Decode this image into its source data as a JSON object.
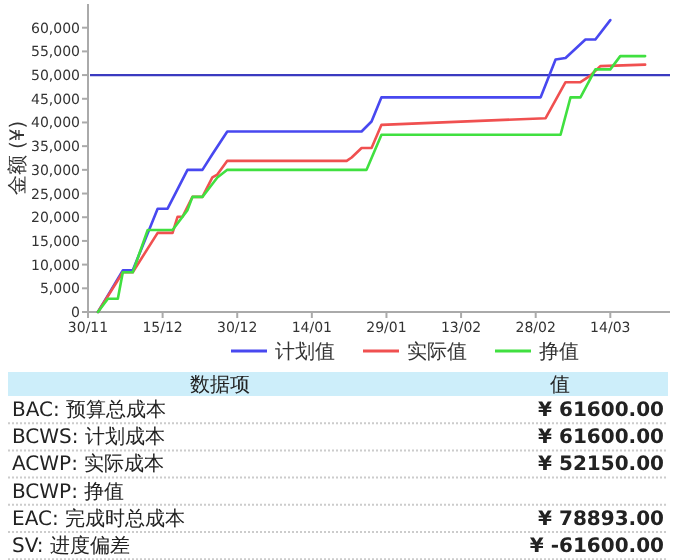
{
  "chart_data": [
    {
      "type": "line",
      "ylabel": "金额 (¥)",
      "xlim": [
        "2011-11-30",
        "2012-03-26"
      ],
      "ylim": [
        0,
        65000
      ],
      "xticks": [
        {
          "value": "2011-11-30",
          "label": "30/11"
        },
        {
          "value": "2011-12-15",
          "label": "15/12"
        },
        {
          "value": "2011-12-30",
          "label": "30/12"
        },
        {
          "value": "2012-01-14",
          "label": "14/01"
        },
        {
          "value": "2012-01-29",
          "label": "29/01"
        },
        {
          "value": "2012-02-13",
          "label": "13/02"
        },
        {
          "value": "2012-02-28",
          "label": "28/02"
        },
        {
          "value": "2012-03-14",
          "label": "14/03"
        }
      ],
      "yticks": [
        0,
        {
          "value": 5000,
          "label": "5,000"
        },
        {
          "value": 10000,
          "label": "10,000"
        },
        {
          "value": 15000,
          "label": "15,000"
        },
        {
          "value": 20000,
          "label": "20,000"
        },
        {
          "value": 25000,
          "label": "25,000"
        },
        {
          "value": 30000,
          "label": "30,000"
        },
        {
          "value": 35000,
          "label": "35,000"
        },
        {
          "value": 40000,
          "label": "40,000"
        },
        {
          "value": 45000,
          "label": "45,000"
        },
        {
          "value": 50000,
          "label": "50,000"
        },
        {
          "value": 55000,
          "label": "55,000"
        },
        {
          "value": 60000,
          "label": "60,000"
        }
      ],
      "ref_lines": [
        {
          "axis": "y",
          "value": 50000,
          "color": "#3a3ac0"
        }
      ],
      "legend": "bottom",
      "grid": false,
      "series": [
        {
          "name": "计划值",
          "color": "#4848f0",
          "x": [
            "2011-12-02",
            "2011-12-04",
            "2011-12-07",
            "2011-12-09",
            "2011-12-14",
            "2011-12-16",
            "2011-12-20",
            "2011-12-23",
            "2011-12-25",
            "2011-12-28",
            "2012-01-24",
            "2012-01-26",
            "2012-01-28",
            "2012-02-29",
            "2012-03-03",
            "2012-03-05",
            "2012-03-09",
            "2012-03-11",
            "2012-03-14"
          ],
          "values": [
            0,
            3500,
            8800,
            8800,
            21800,
            21800,
            30000,
            30000,
            33300,
            38100,
            38100,
            40200,
            45300,
            45300,
            53300,
            53600,
            57500,
            57500,
            61600
          ]
        },
        {
          "name": "实际值",
          "color": "#f05050",
          "x": [
            "2011-12-02",
            "2011-12-07",
            "2011-12-09",
            "2011-12-14",
            "2011-12-17",
            "2011-12-18",
            "2011-12-19",
            "2011-12-21",
            "2011-12-23",
            "2011-12-25",
            "2011-12-26",
            "2011-12-28",
            "2012-01-21",
            "2012-01-22",
            "2012-01-24",
            "2012-01-26",
            "2012-01-28",
            "2012-03-01",
            "2012-03-05",
            "2012-03-08",
            "2012-03-10",
            "2012-03-12",
            "2012-03-21"
          ],
          "values": [
            0,
            8400,
            8400,
            16700,
            16700,
            20100,
            20100,
            24300,
            24300,
            28400,
            29000,
            31900,
            31900,
            32600,
            34600,
            34600,
            39500,
            40900,
            48500,
            48500,
            49900,
            51900,
            52200
          ]
        },
        {
          "name": "挣值",
          "color": "#40e040",
          "x": [
            "2011-12-02",
            "2011-12-04",
            "2011-12-06",
            "2011-12-07",
            "2011-12-09",
            "2011-12-12",
            "2011-12-17",
            "2011-12-20",
            "2011-12-21",
            "2011-12-23",
            "2011-12-25",
            "2011-12-26",
            "2011-12-28",
            "2012-01-25",
            "2012-01-28",
            "2012-03-04",
            "2012-03-06",
            "2012-03-08",
            "2012-03-11",
            "2012-03-14",
            "2012-03-16",
            "2012-03-21"
          ],
          "values": [
            0,
            2800,
            2800,
            8400,
            8400,
            17300,
            17300,
            21500,
            24300,
            24300,
            27000,
            28400,
            30000,
            30000,
            37400,
            37400,
            45300,
            45300,
            51200,
            51200,
            54000,
            54000
          ]
        }
      ]
    },
    {
      "type": "other",
      "annotations": [
        "数据项",
        "值"
      ],
      "categories": [
        "BAC: 预算总成本",
        "BCWS: 计划成本",
        "ACWP: 实际成本",
        "BCWP: 挣值",
        "EAC: 完成时总成本",
        "SV: 进度偏差"
      ],
      "value_labels": [
        "¥ 61600.00",
        "¥ 61600.00",
        "¥ 52150.00",
        null,
        "¥ 78893.00",
        "¥ -61600.00"
      ]
    }
  ]
}
